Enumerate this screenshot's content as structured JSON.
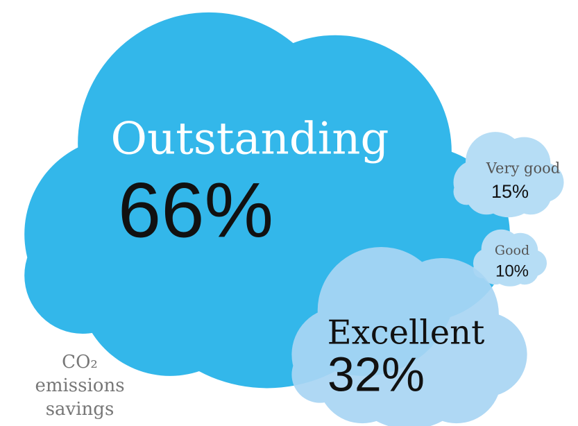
{
  "chart_data": {
    "type": "cloud",
    "note": "CO₂ emissions savings",
    "categories": [
      "Outstanding",
      "Excellent",
      "Very good",
      "Good"
    ],
    "values": [
      66,
      32,
      15,
      10
    ],
    "value_labels": [
      "66%",
      "32%",
      "15%",
      "10%"
    ],
    "colors": [
      "#33b7ea",
      "#a8d5f3",
      "#b6ddf5",
      "#b6ddf5"
    ]
  }
}
